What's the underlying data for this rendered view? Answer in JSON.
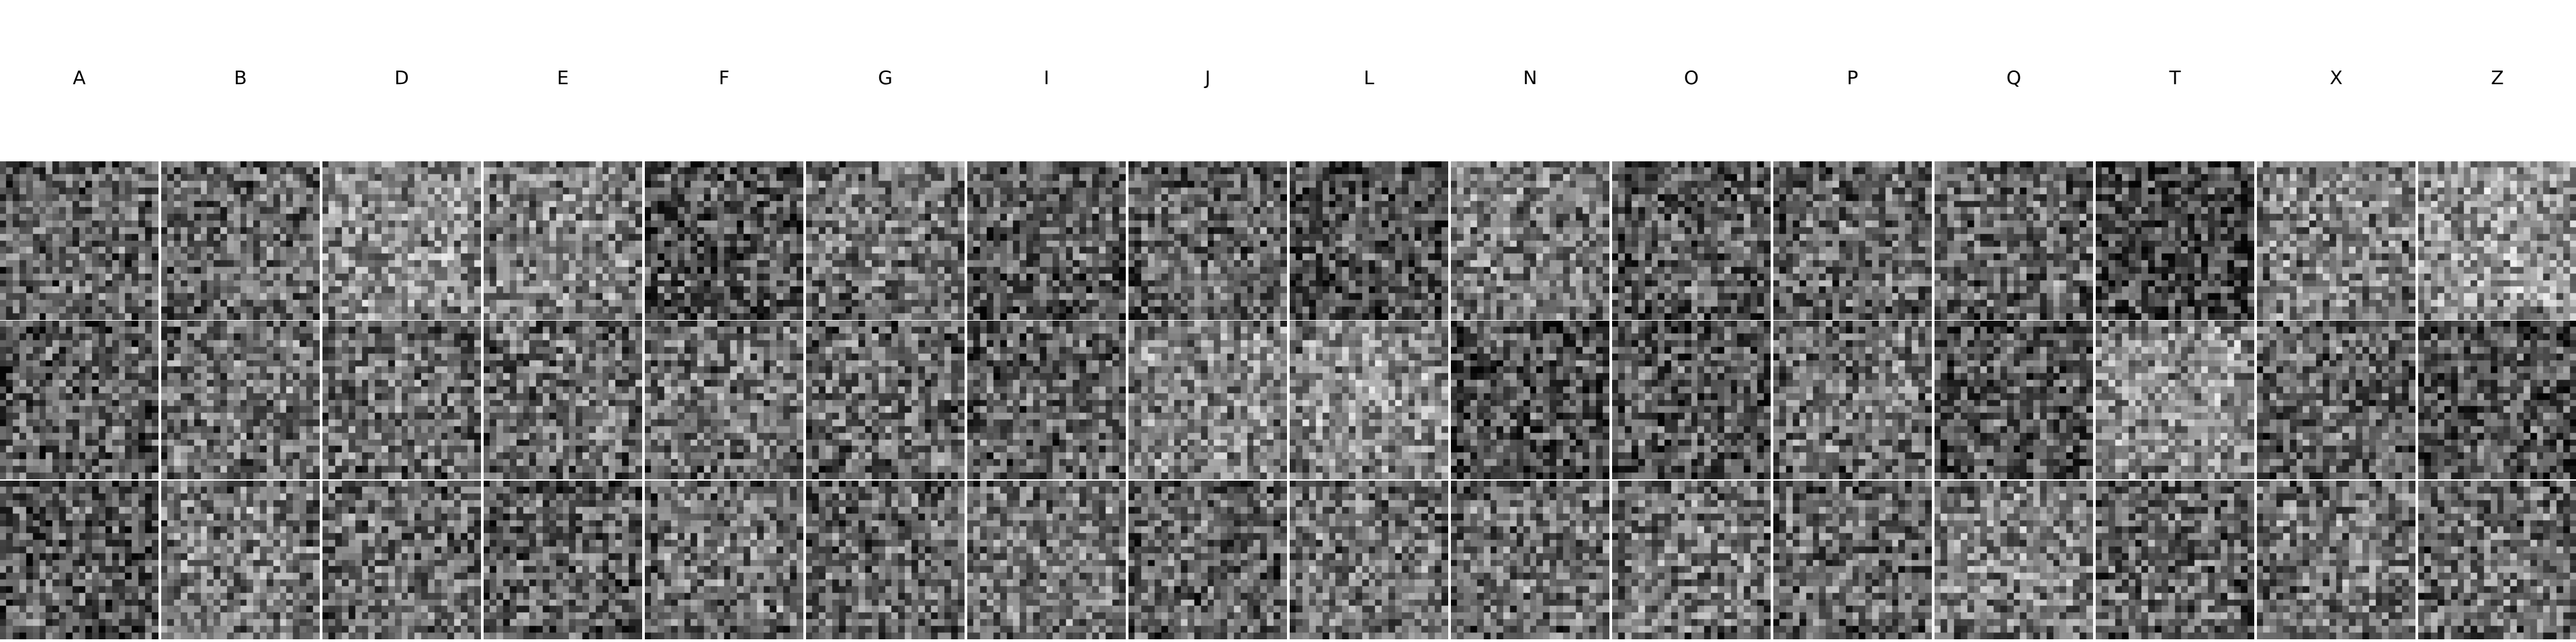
{
  "grid": {
    "rows": 3,
    "columns": [
      "A",
      "B",
      "D",
      "E",
      "F",
      "G",
      "I",
      "J",
      "L",
      "N",
      "O",
      "P",
      "Q",
      "T",
      "X",
      "Z"
    ],
    "pixels_per_tile": 24,
    "colormap": "gray",
    "tile_brightness": [
      [
        0.4,
        0.42,
        0.55,
        0.5,
        0.33,
        0.45,
        0.37,
        0.4,
        0.33,
        0.48,
        0.37,
        0.4,
        0.42,
        0.3,
        0.5,
        0.58
      ],
      [
        0.37,
        0.45,
        0.43,
        0.43,
        0.43,
        0.42,
        0.38,
        0.52,
        0.55,
        0.33,
        0.35,
        0.44,
        0.35,
        0.55,
        0.4,
        0.33
      ],
      [
        0.35,
        0.48,
        0.42,
        0.38,
        0.45,
        0.4,
        0.47,
        0.4,
        0.45,
        0.43,
        0.47,
        0.4,
        0.5,
        0.4,
        0.45,
        0.43
      ]
    ]
  }
}
